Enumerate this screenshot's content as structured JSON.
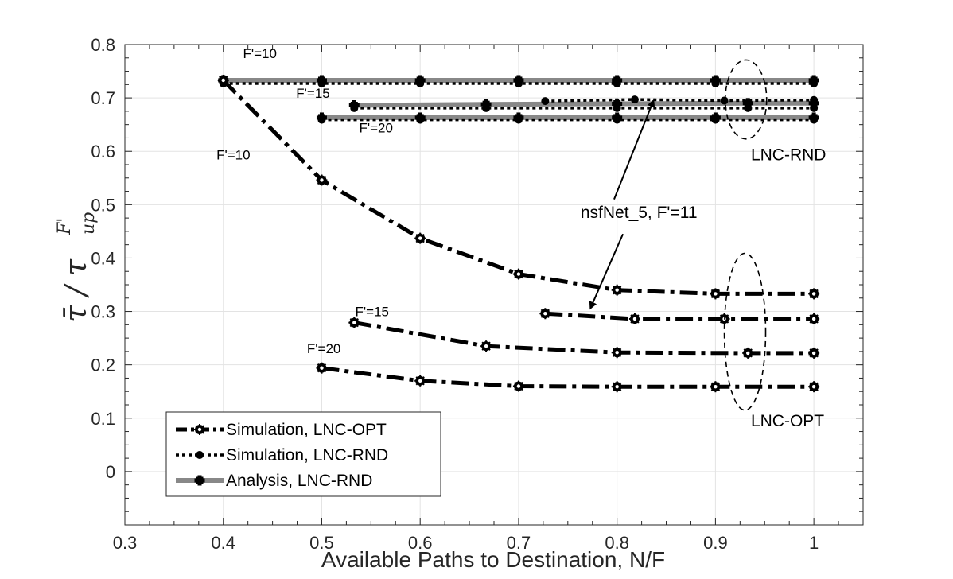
{
  "chart_data": {
    "type": "line",
    "xlabel": "Available Paths to Destination, N/F",
    "ylabel": "τ̄ / τ_up^F'",
    "ylabel_parts": {
      "main": "τ̄ / τ",
      "sub": "up",
      "sup": "F'"
    },
    "xlim": [
      0.3,
      1.05
    ],
    "ylim": [
      -0.1,
      0.8
    ],
    "xticks": [
      0.3,
      0.4,
      0.5,
      0.6,
      0.7,
      0.8,
      0.9,
      1
    ],
    "xtick_labels": [
      "0.3",
      "0.4",
      "0.5",
      "0.6",
      "0.7",
      "0.8",
      "0.9",
      "1"
    ],
    "yticks": [
      0,
      0.1,
      0.2,
      0.3,
      0.4,
      0.5,
      0.6,
      0.7,
      0.8
    ],
    "ytick_labels": [
      "0",
      "0.1",
      "0.2",
      "0.3",
      "0.4",
      "0.5",
      "0.6",
      "0.7",
      "0.8"
    ],
    "grid": true,
    "legend": {
      "placement": "bottom-left",
      "entries": [
        {
          "label": "Simulation, LNC-OPT",
          "style": "opt"
        },
        {
          "label": "Simulation, LNC-RND",
          "style": "rnd-sim"
        },
        {
          "label": "Analysis, LNC-RND",
          "style": "rnd-ana"
        }
      ]
    },
    "series": [
      {
        "style": "rnd-ana",
        "x": [
          0.4,
          0.5,
          0.6,
          0.7,
          0.8,
          0.9,
          1.0
        ],
        "y": [
          0.733,
          0.733,
          0.733,
          0.733,
          0.733,
          0.733,
          0.733
        ]
      },
      {
        "style": "rnd-ana",
        "x": [
          0.533,
          0.667,
          0.8,
          0.933,
          1.0
        ],
        "y": [
          0.686,
          0.688,
          0.689,
          0.69,
          0.69
        ]
      },
      {
        "style": "rnd-ana",
        "x": [
          0.5,
          0.6,
          0.7,
          0.8,
          0.9,
          1.0
        ],
        "y": [
          0.663,
          0.663,
          0.663,
          0.663,
          0.663,
          0.663
        ]
      },
      {
        "style": "rnd-sim",
        "x": [
          0.4,
          0.5,
          0.6,
          0.7,
          0.8,
          0.9,
          1.0
        ],
        "y": [
          0.727,
          0.727,
          0.727,
          0.727,
          0.727,
          0.727,
          0.727
        ]
      },
      {
        "style": "rnd-sim",
        "x": [
          0.533,
          0.667,
          0.8,
          0.933,
          1.0
        ],
        "y": [
          0.681,
          0.681,
          0.681,
          0.681,
          0.681
        ]
      },
      {
        "style": "rnd-sim",
        "x": [
          0.5,
          0.6,
          0.7,
          0.8,
          0.9,
          1.0
        ],
        "y": [
          0.659,
          0.659,
          0.659,
          0.659,
          0.659,
          0.659
        ]
      },
      {
        "style": "rnd-sim",
        "x": [
          0.727,
          0.818,
          0.909,
          1.0
        ],
        "y": [
          0.694,
          0.697,
          0.695,
          0.696
        ]
      },
      {
        "style": "opt",
        "x": [
          0.4,
          0.5,
          0.6,
          0.7,
          0.8,
          0.9,
          1.0
        ],
        "y": [
          0.733,
          0.546,
          0.437,
          0.37,
          0.34,
          0.333,
          0.333
        ]
      },
      {
        "style": "opt",
        "x": [
          0.533,
          0.667,
          0.8,
          0.933,
          1.0
        ],
        "y": [
          0.279,
          0.235,
          0.223,
          0.222,
          0.222
        ]
      },
      {
        "style": "opt",
        "x": [
          0.5,
          0.6,
          0.7,
          0.8,
          0.9,
          1.0
        ],
        "y": [
          0.194,
          0.17,
          0.16,
          0.159,
          0.159,
          0.159
        ]
      },
      {
        "style": "opt",
        "x": [
          0.727,
          0.818,
          0.909,
          1.0
        ],
        "y": [
          0.296,
          0.286,
          0.286,
          0.286
        ]
      }
    ],
    "annotations": [
      {
        "text": "F'=10",
        "x": 0.42,
        "y": 0.775,
        "class": "anno"
      },
      {
        "text": "F'=15",
        "x": 0.474,
        "y": 0.7,
        "class": "anno"
      },
      {
        "text": "F'=20",
        "x": 0.538,
        "y": 0.635,
        "class": "anno"
      },
      {
        "text": "F'=10",
        "x": 0.393,
        "y": 0.585,
        "class": "anno"
      },
      {
        "text": "F'=15",
        "x": 0.534,
        "y": 0.291,
        "class": "anno"
      },
      {
        "text": "F'=20",
        "x": 0.485,
        "y": 0.222,
        "class": "anno"
      },
      {
        "text": "nsfNet_5, F'=11",
        "x": 0.763,
        "y": 0.475,
        "class": "anno-big"
      },
      {
        "text": "LNC-RND",
        "x": 0.936,
        "y": 0.583,
        "class": "anno-big"
      },
      {
        "text": "LNC-OPT",
        "x": 0.936,
        "y": 0.085,
        "class": "anno-big"
      }
    ],
    "arrows": [
      {
        "from": [
          0.797,
          0.51
        ],
        "to": [
          0.837,
          0.695
        ]
      },
      {
        "from": [
          0.806,
          0.445
        ],
        "to": [
          0.773,
          0.306
        ]
      }
    ],
    "ellipses": [
      {
        "cx": 0.931,
        "cy": 0.697,
        "rx": 0.021,
        "ry": 0.074
      },
      {
        "cx": 0.93,
        "cy": 0.262,
        "rx": 0.021,
        "ry": 0.147
      }
    ]
  }
}
